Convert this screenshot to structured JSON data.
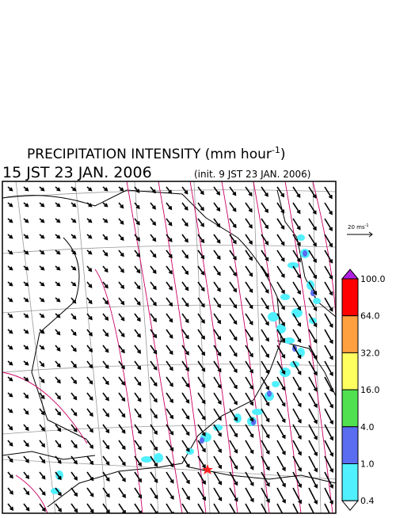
{
  "header": {
    "title_main": "PRECIPITATION INTENSITY (mm hour",
    "title_sup": "-1",
    "title_end": ")",
    "valid_time": "15 JST 23 JAN. 2006",
    "init_time": "(init. 9 JST 23 JAN. 2006)"
  },
  "vector_scale": {
    "label": "20 ms",
    "label_sup": "-1"
  },
  "colorbar": {
    "labels": [
      "100.0",
      "64.0",
      "32.0",
      "16.0",
      "4.0",
      "1.0",
      "0.4"
    ],
    "colors": [
      "#ff0000",
      "#ffa040",
      "#ffff60",
      "#50e050",
      "#5a6cf0",
      "#50f0ff"
    ],
    "over_color": "#b020e0",
    "under_color": "#ffffff"
  }
}
